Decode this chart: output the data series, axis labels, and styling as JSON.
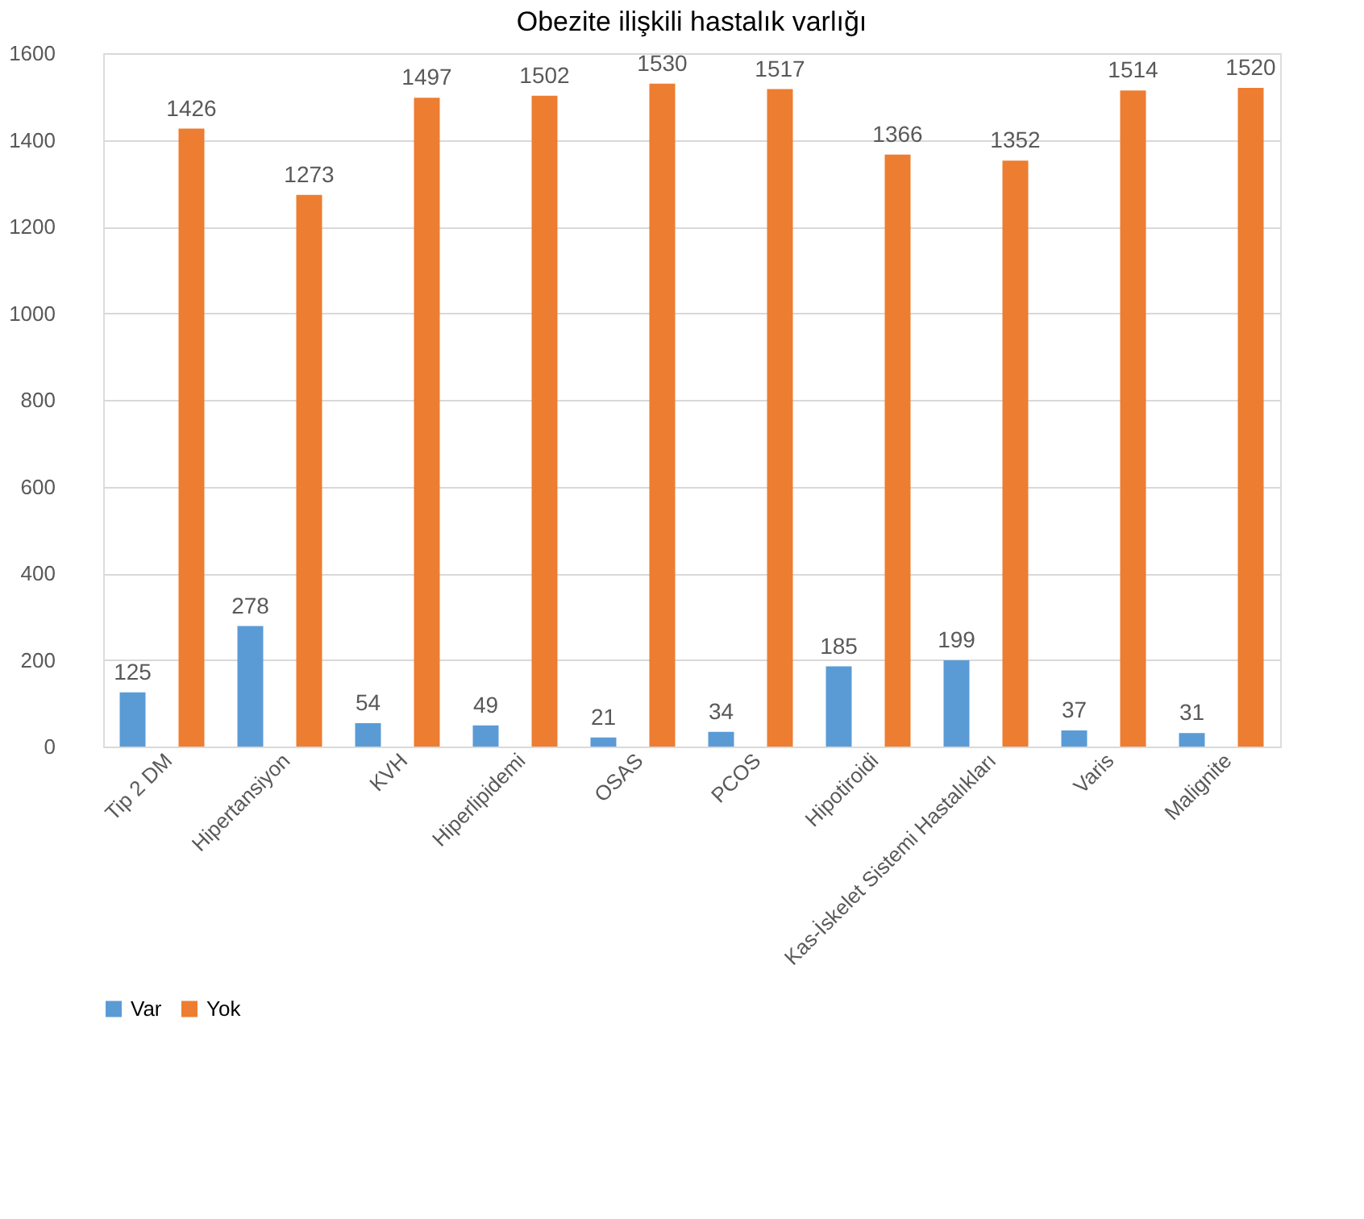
{
  "chart_data": {
    "type": "bar",
    "title": "Obezite ilişkili hastalık varlığı",
    "categories": [
      "Tip 2 DM",
      "Hipertansiyon",
      "KVH",
      "Hiperlipidemi",
      "OSAS",
      "PCOS",
      "Hipotiroidi",
      "Kas-İskelet Sistemi Hastalıkları",
      "Varis",
      "Malignite"
    ],
    "series": [
      {
        "name": "Var",
        "color": "#5b9bd5",
        "values": [
          125,
          278,
          54,
          49,
          21,
          34,
          185,
          199,
          37,
          31
        ]
      },
      {
        "name": "Yok",
        "color": "#ed7d31",
        "values": [
          1426,
          1273,
          1497,
          1502,
          1530,
          1517,
          1366,
          1352,
          1514,
          1520
        ]
      }
    ],
    "ylim": [
      0,
      1600
    ],
    "yticks": [
      0,
      200,
      400,
      600,
      800,
      1000,
      1200,
      1400,
      1600
    ],
    "grid": "y",
    "legend": "bottom",
    "data_labels": true
  }
}
